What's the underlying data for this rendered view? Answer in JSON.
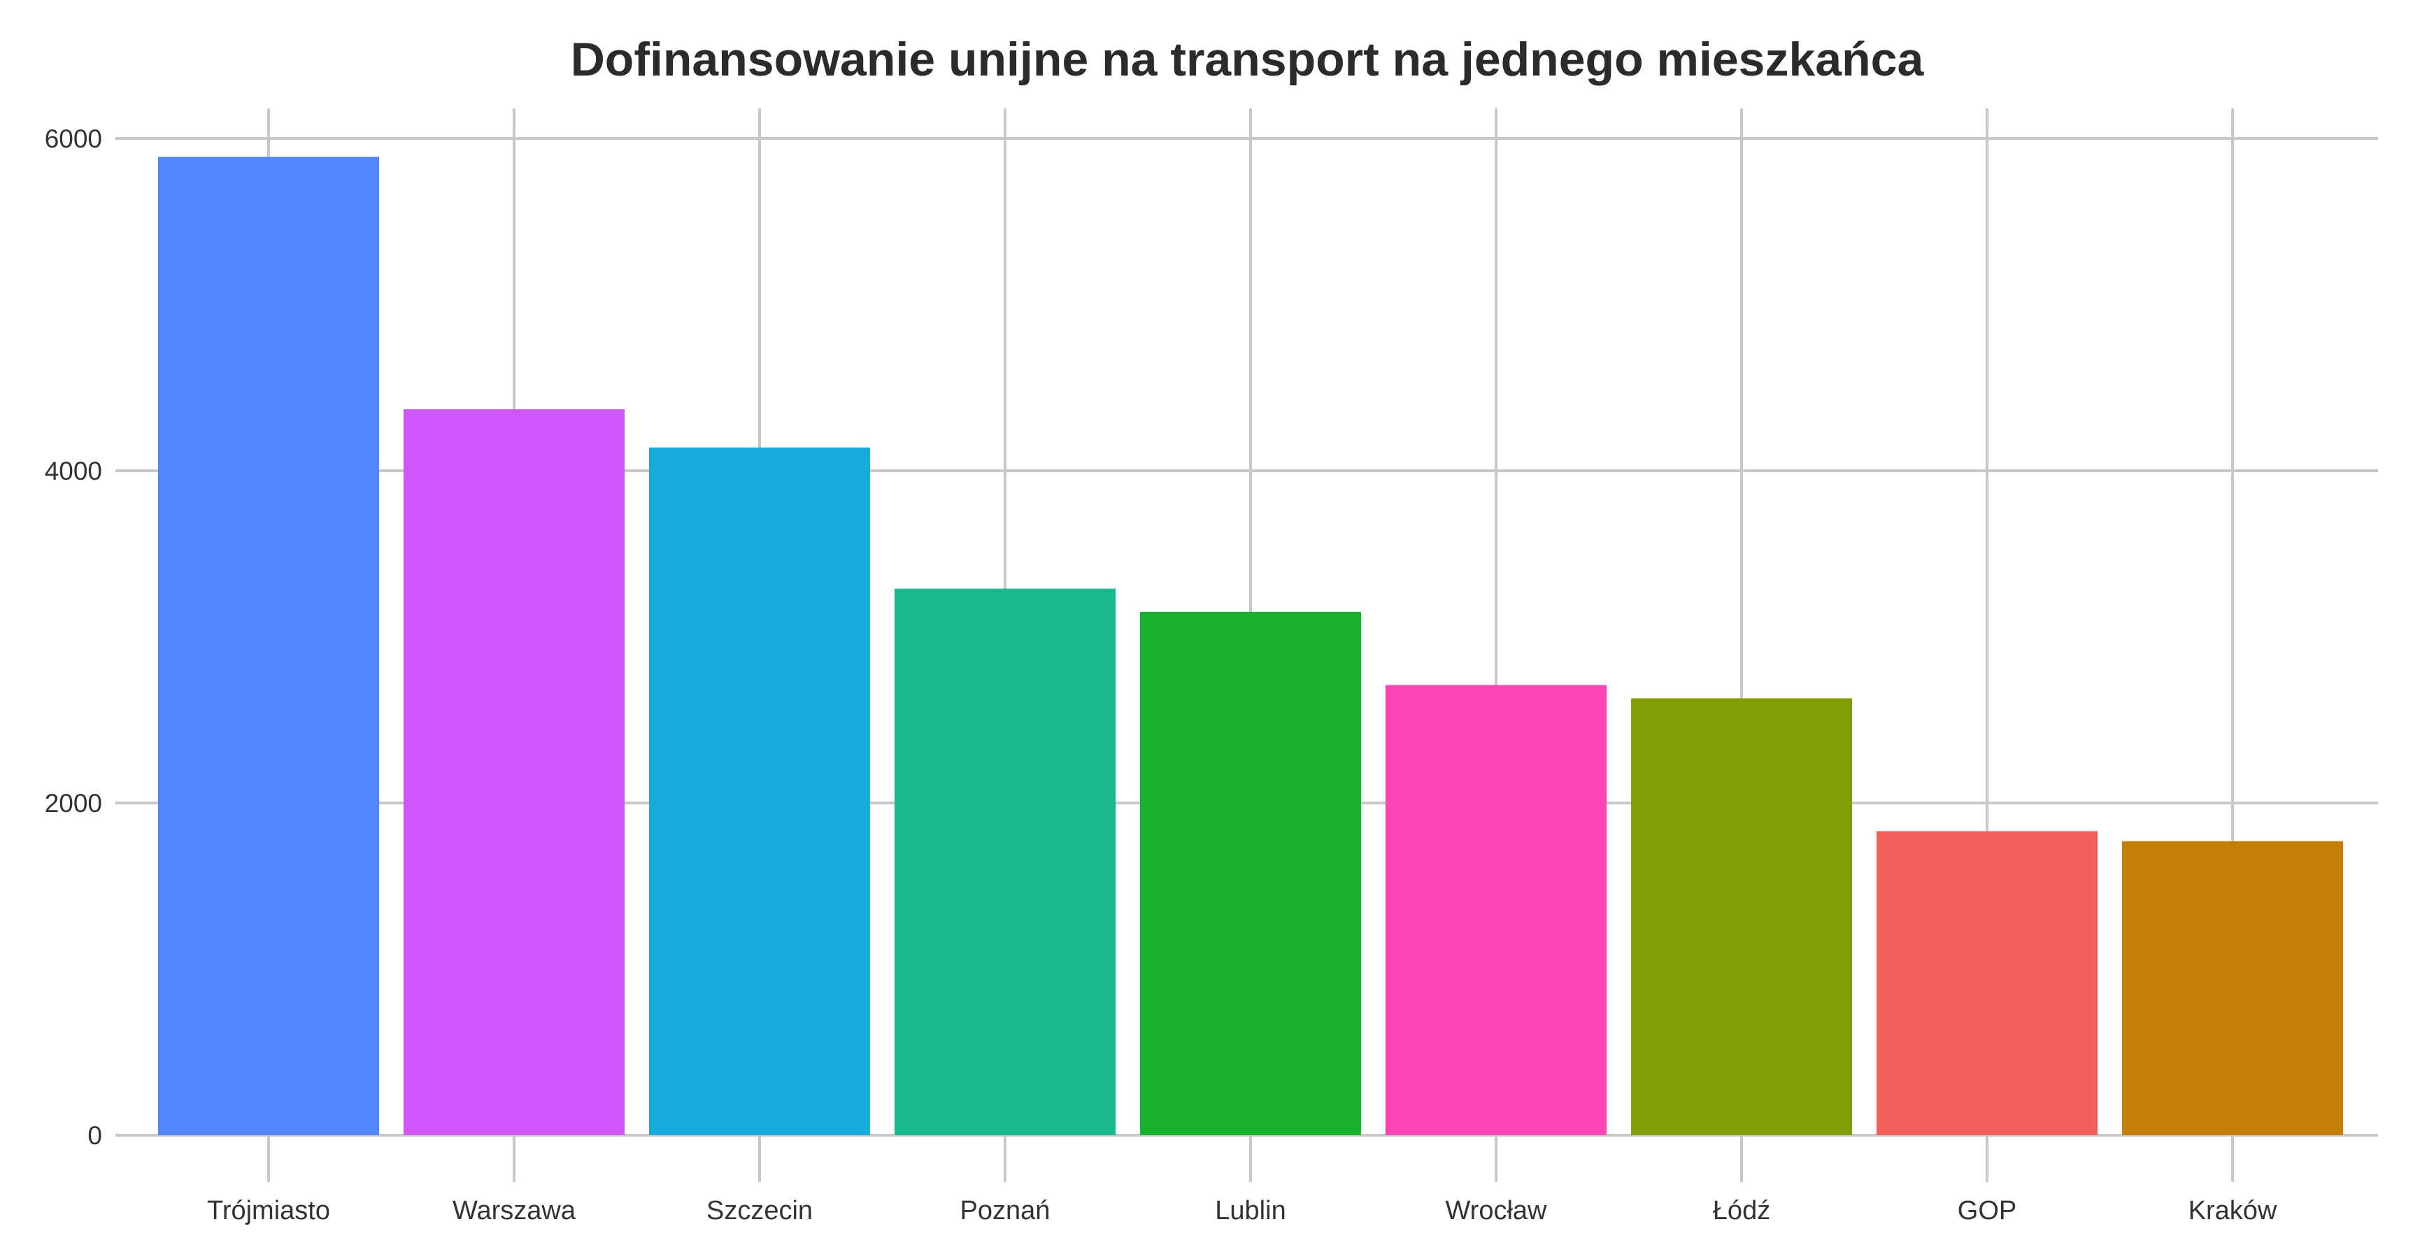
{
  "chart_data": {
    "type": "bar",
    "title": "Dofinansowanie unijne  na transport na jednego mieszkańca",
    "xlabel": "",
    "ylabel": "",
    "categories": [
      "Trójmiasto",
      "Warszawa",
      "Szczecin",
      "Poznań",
      "Lublin",
      "Wrocław",
      "Łódź",
      "GOP",
      "Kraków"
    ],
    "values": [
      5890,
      4370,
      4140,
      3290,
      3150,
      2710,
      2630,
      1830,
      1770
    ],
    "colors": [
      "#5087FF",
      "#D055FA",
      "#17ACDC",
      "#19BA8E",
      "#19B22E",
      "#FF45B6",
      "#839F06",
      "#F3605C",
      "#C57E08"
    ],
    "ylim": [
      0,
      6200
    ],
    "yticks": [
      0,
      2000,
      4000,
      6000
    ],
    "grid": true,
    "legend": "none"
  }
}
